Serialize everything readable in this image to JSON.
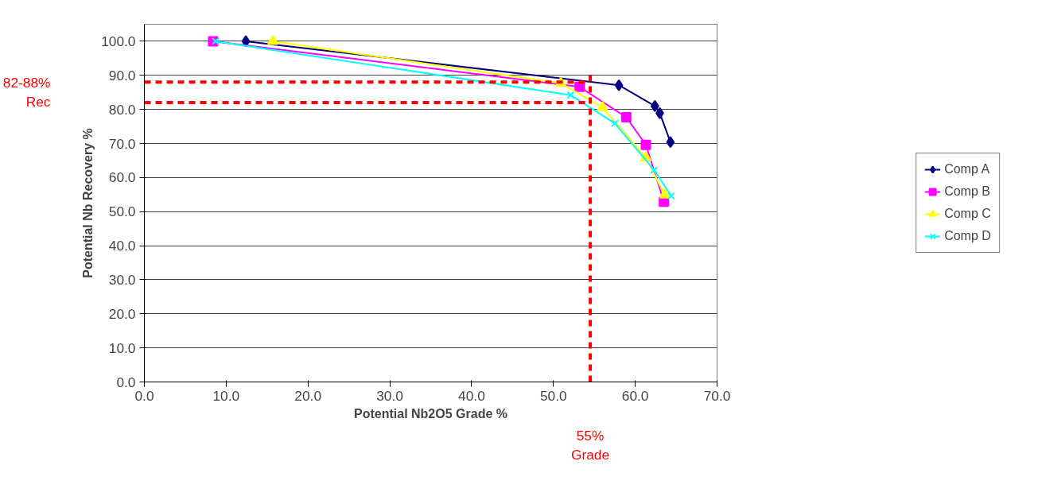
{
  "chart_data": {
    "type": "line",
    "xlabel": "Potential Nb2O5 Grade %",
    "ylabel": "Potential Nb Recovery %",
    "xlim": [
      0,
      70
    ],
    "ylim": [
      0,
      105
    ],
    "xticks": [
      {
        "value": 0,
        "label": "0.0"
      },
      {
        "value": 10,
        "label": "10.0"
      },
      {
        "value": 20,
        "label": "20.0"
      },
      {
        "value": 30,
        "label": "30.0"
      },
      {
        "value": 40,
        "label": "40.0"
      },
      {
        "value": 50,
        "label": "50.0"
      },
      {
        "value": 60,
        "label": "60.0"
      },
      {
        "value": 70,
        "label": "70.0"
      }
    ],
    "yticks": [
      {
        "value": 0,
        "label": "0.0"
      },
      {
        "value": 10,
        "label": "10.0"
      },
      {
        "value": 20,
        "label": "20.0"
      },
      {
        "value": 30,
        "label": "30.0"
      },
      {
        "value": 40,
        "label": "40.0"
      },
      {
        "value": 50,
        "label": "50.0"
      },
      {
        "value": 60,
        "label": "60.0"
      },
      {
        "value": 70,
        "label": "70.0"
      },
      {
        "value": 80,
        "label": "80.0"
      },
      {
        "value": 90,
        "label": "90.0"
      },
      {
        "value": 100,
        "label": "100.0"
      }
    ],
    "grid": "y",
    "legend": "right",
    "series": [
      {
        "name": "Comp A",
        "color": "#000080",
        "marker": "diamond",
        "x": [
          12.4,
          58.0,
          62.4,
          63.0,
          64.3
        ],
        "values": [
          100,
          87.1,
          81.0,
          78.9,
          70.4
        ]
      },
      {
        "name": "Comp B",
        "color": "#ff00ff",
        "marker": "square",
        "x": [
          8.4,
          53.2,
          58.9,
          61.3,
          63.5
        ],
        "values": [
          100,
          86.6,
          77.7,
          69.6,
          52.9
        ]
      },
      {
        "name": "Comp C",
        "color": "#ffff00",
        "marker": "triangle",
        "x": [
          15.7,
          50.9,
          56.0,
          61.3,
          63.6
        ],
        "values": [
          100,
          87.7,
          80.6,
          65.8,
          54.9
        ]
      },
      {
        "name": "Comp D",
        "color": "#00ffff",
        "marker": "cross",
        "x": [
          8.7,
          52.1,
          57.5,
          62.3,
          64.4
        ],
        "values": [
          100,
          84.2,
          75.9,
          62.2,
          54.6
        ]
      }
    ],
    "ref_lines": [
      {
        "axis": "y",
        "value": 88,
        "label": "82-88%\nRec",
        "color": "#ff0000",
        "line_style": "dashed"
      },
      {
        "axis": "y",
        "value": 82,
        "label": null,
        "color": "#ff0000",
        "line_style": "dashed"
      },
      {
        "axis": "x",
        "value": 54.5,
        "label": "55%\nGrade",
        "color": "#ff0000",
        "line_style": "dashed"
      }
    ]
  }
}
